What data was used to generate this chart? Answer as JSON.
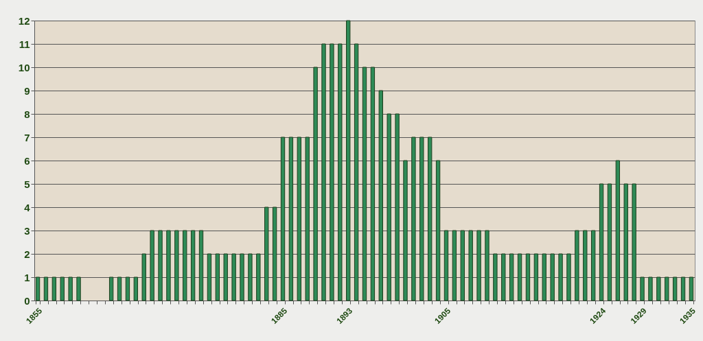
{
  "chart_data": {
    "type": "bar",
    "categories": [
      "1855",
      null,
      null,
      null,
      null,
      null,
      null,
      null,
      null,
      null,
      null,
      null,
      null,
      null,
      null,
      null,
      null,
      null,
      null,
      null,
      null,
      null,
      null,
      null,
      null,
      null,
      null,
      null,
      null,
      null,
      "1885",
      null,
      null,
      null,
      null,
      null,
      null,
      null,
      "1893",
      null,
      null,
      null,
      null,
      null,
      null,
      null,
      null,
      null,
      null,
      null,
      "1905",
      null,
      null,
      null,
      null,
      null,
      null,
      null,
      null,
      null,
      null,
      null,
      null,
      null,
      null,
      null,
      null,
      null,
      null,
      "1924",
      null,
      null,
      null,
      null,
      "1929",
      null,
      null,
      null,
      null,
      null,
      "1935"
    ],
    "values": [
      1,
      1,
      1,
      1,
      1,
      1,
      null,
      null,
      null,
      1,
      1,
      1,
      1,
      2,
      3,
      3,
      3,
      3,
      3,
      3,
      3,
      2,
      2,
      2,
      2,
      2,
      2,
      2,
      4,
      4,
      7,
      7,
      7,
      7,
      10,
      11,
      11,
      11,
      12,
      11,
      10,
      10,
      9,
      8,
      8,
      6,
      7,
      7,
      7,
      6,
      3,
      3,
      3,
      3,
      3,
      3,
      2,
      2,
      2,
      2,
      2,
      2,
      2,
      2,
      2,
      2,
      3,
      3,
      3,
      5,
      5,
      6,
      5,
      5,
      1,
      1,
      1,
      1,
      1,
      1,
      1
    ],
    "color": "#2e8b57",
    "ylim": [
      0,
      12
    ],
    "yticks": [
      0,
      1,
      2,
      3,
      4,
      5,
      6,
      7,
      8,
      9,
      10,
      11,
      12
    ],
    "grid": "y"
  }
}
